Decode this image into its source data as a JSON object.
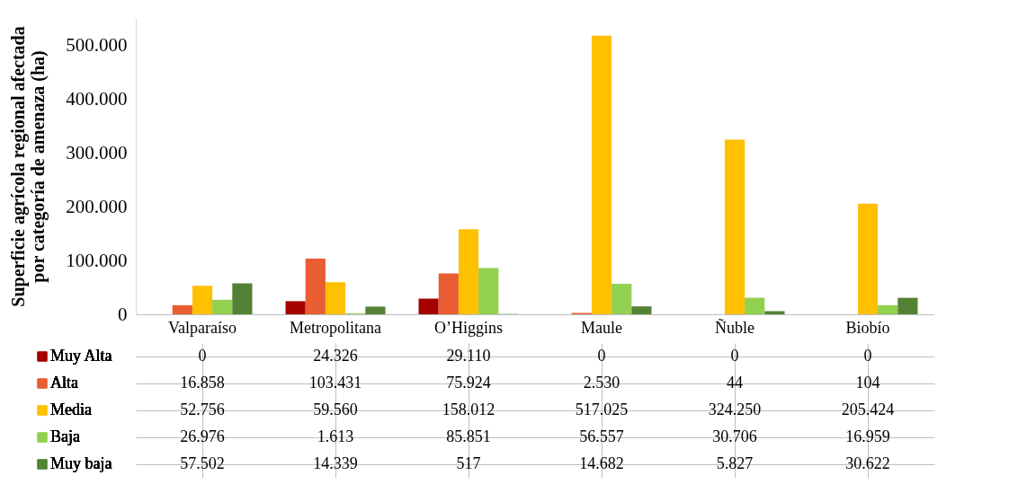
{
  "chart_data": {
    "type": "bar",
    "ylabel": "Superficie agrícola regional afectada por categoría de amenaza (ha)",
    "categories": [
      "Valparaíso",
      "Metropolitana",
      "O’Higgins",
      "Maule",
      "Ñuble",
      "Biobío"
    ],
    "ylim": [
      0,
      550000
    ],
    "yticks": [
      0,
      {
        "value": 100000,
        "label": "100.000"
      },
      {
        "value": 200000,
        "label": "200.000"
      },
      {
        "value": 300000,
        "label": "300.000"
      },
      {
        "value": 400000,
        "label": "400.000"
      },
      {
        "value": 500000,
        "label": "500.000"
      }
    ],
    "legend": "bottom",
    "series": [
      {
        "name": "Muy Alta",
        "color": "#a50000",
        "values": [
          0,
          24326,
          29110,
          0,
          0,
          0
        ],
        "value_labels": [
          "0",
          "24.326",
          "29.110",
          "0",
          "0",
          "0"
        ]
      },
      {
        "name": "Alta",
        "color": "#e85d32",
        "values": [
          16858,
          103431,
          75924,
          2530,
          44,
          104
        ],
        "value_labels": [
          "16.858",
          "103.431",
          "75.924",
          "2.530",
          "44",
          "104"
        ]
      },
      {
        "name": "Media",
        "color": "#ffc000",
        "values": [
          52756,
          59560,
          158012,
          517025,
          324250,
          205424
        ],
        "value_labels": [
          "52.756",
          "59.560",
          "158.012",
          "517.025",
          "324.250",
          "205.424"
        ]
      },
      {
        "name": "Baja",
        "color": "#92d050",
        "values": [
          26976,
          1613,
          85851,
          56557,
          30706,
          16959
        ],
        "value_labels": [
          "26.976",
          "1.613",
          "85.851",
          "56.557",
          "30.706",
          "16.959"
        ]
      },
      {
        "name": "Muy baja",
        "color": "#548235",
        "values": [
          57502,
          14339,
          517,
          14682,
          5827,
          30622
        ],
        "value_labels": [
          "57.502",
          "14.339",
          "517",
          "14.682",
          "5.827",
          "30.622"
        ]
      }
    ]
  }
}
